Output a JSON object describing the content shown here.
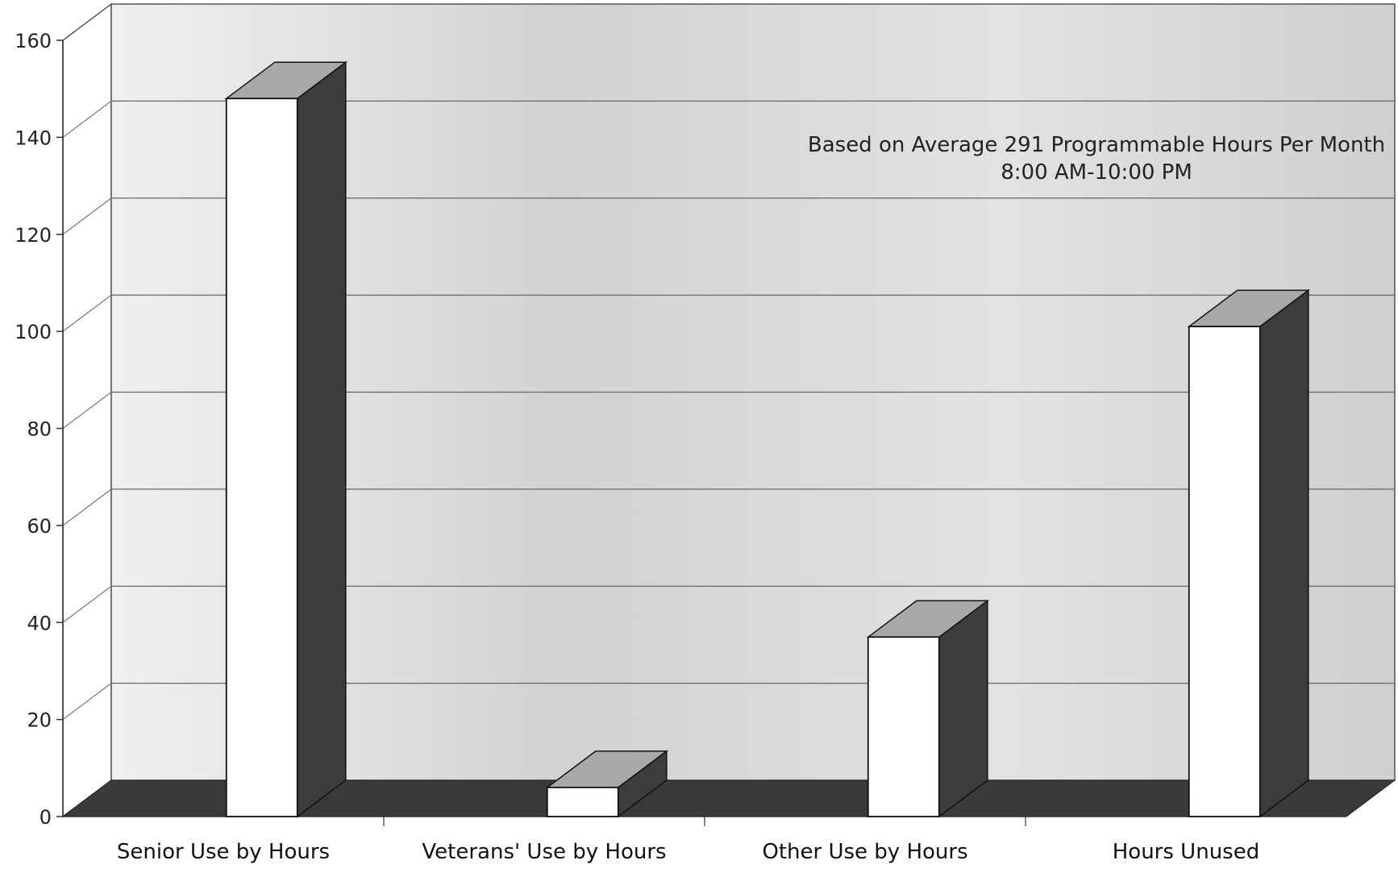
{
  "chart_data": {
    "type": "bar",
    "style": "3d",
    "categories": [
      "Senior Use by Hours",
      "Veterans' Use by Hours",
      "Other Use by Hours",
      "Hours Unused"
    ],
    "values": [
      148,
      6,
      37,
      101
    ],
    "ylim": [
      0,
      160
    ],
    "yticks": [
      0,
      20,
      40,
      60,
      80,
      100,
      120,
      140,
      160
    ],
    "grid": true,
    "annotation": {
      "line1": "Based on Average 291 Programmable Hours Per Month",
      "line2": "8:00 AM-10:00 PM"
    },
    "colors": {
      "bar_front": "#ffffff",
      "bar_side": "#3c3c3c",
      "bar_top": "#a8a8a8",
      "floor": "#3a3a3a",
      "back_wall": "#dcdcdc",
      "left_wall": "#ffffff"
    }
  }
}
